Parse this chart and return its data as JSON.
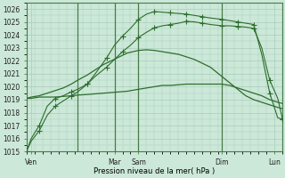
{
  "xlabel": "Pression niveau de la mer( hPa )",
  "ylim": [
    1015,
    1026.5
  ],
  "yticks": [
    1015,
    1016,
    1017,
    1018,
    1019,
    1020,
    1021,
    1022,
    1023,
    1024,
    1025,
    1026
  ],
  "bg_color": "#cce8d8",
  "grid_color": "#aaccbb",
  "line_color": "#2d6e2d",
  "xlim": [
    0,
    16
  ],
  "xtick_positions": [
    0.3,
    5.5,
    7.0,
    12.2,
    15.5
  ],
  "xtick_labels": [
    "Ven",
    "Mar",
    "Sam",
    "Dim",
    "Lun"
  ],
  "vline_positions": [
    3.2,
    5.5,
    7.0,
    12.2
  ],
  "line1_x": [
    0,
    0.3,
    0.8,
    1.3,
    1.8,
    2.3,
    2.8,
    3.2,
    3.8,
    4.3,
    4.8,
    5.3,
    5.8,
    6.3,
    7.0,
    7.5,
    8.0,
    8.5,
    9.0,
    9.5,
    10.0,
    10.5,
    11.0,
    11.5,
    12.2,
    12.7,
    13.2,
    13.7,
    14.2,
    14.7,
    15.2,
    15.7,
    16
  ],
  "line1_y": [
    1019.1,
    1019.1,
    1019.2,
    1019.2,
    1019.2,
    1019.25,
    1019.3,
    1019.35,
    1019.4,
    1019.45,
    1019.5,
    1019.55,
    1019.6,
    1019.65,
    1019.8,
    1019.9,
    1020.0,
    1020.1,
    1020.1,
    1020.15,
    1020.2,
    1020.2,
    1020.2,
    1020.2,
    1020.2,
    1020.1,
    1019.9,
    1019.7,
    1019.5,
    1019.3,
    1019.0,
    1018.8,
    1018.7
  ],
  "line2_x": [
    0,
    0.3,
    0.8,
    1.3,
    1.8,
    2.3,
    2.8,
    3.2,
    3.8,
    4.3,
    4.8,
    5.3,
    5.8,
    6.3,
    7.0,
    7.5,
    8.0,
    8.5,
    9.0,
    9.5,
    10.0,
    10.5,
    11.0,
    11.5,
    12.2,
    12.7,
    13.2,
    13.7,
    14.2,
    14.7,
    15.2,
    15.7,
    16
  ],
  "line2_y": [
    1019.1,
    1019.2,
    1019.3,
    1019.5,
    1019.7,
    1019.9,
    1020.2,
    1020.5,
    1020.9,
    1021.3,
    1021.7,
    1022.0,
    1022.3,
    1022.6,
    1022.8,
    1022.85,
    1022.8,
    1022.7,
    1022.6,
    1022.5,
    1022.3,
    1022.1,
    1021.8,
    1021.5,
    1020.8,
    1020.3,
    1019.8,
    1019.3,
    1019.0,
    1018.8,
    1018.6,
    1018.4,
    1018.3
  ],
  "line3_x": [
    0.0,
    0.3,
    0.8,
    1.3,
    1.8,
    2.3,
    2.8,
    3.2,
    3.8,
    4.3,
    5.0,
    5.5,
    6.0,
    6.5,
    7.0,
    7.5,
    8.0,
    8.5,
    9.0,
    9.5,
    10.0,
    10.5,
    11.0,
    11.5,
    12.2,
    12.7,
    13.2,
    13.7,
    14.2,
    14.7,
    15.2,
    15.7,
    16.0
  ],
  "line3_y": [
    1015.0,
    1016.0,
    1017.0,
    1018.5,
    1019.1,
    1019.3,
    1019.6,
    1019.8,
    1020.2,
    1020.8,
    1021.5,
    1022.1,
    1022.7,
    1023.2,
    1023.8,
    1024.2,
    1024.55,
    1024.7,
    1024.8,
    1024.9,
    1025.05,
    1025.0,
    1024.9,
    1024.8,
    1024.7,
    1024.7,
    1024.65,
    1024.6,
    1024.5,
    1023.0,
    1020.5,
    1019.1,
    1017.5
  ],
  "line4_x": [
    0.0,
    0.3,
    0.8,
    1.3,
    1.8,
    2.3,
    2.8,
    3.2,
    3.8,
    4.3,
    5.0,
    5.5,
    6.0,
    6.5,
    7.0,
    7.5,
    8.0,
    8.5,
    9.0,
    9.5,
    10.0,
    10.5,
    11.0,
    11.5,
    12.2,
    12.7,
    13.2,
    13.7,
    14.2,
    14.7,
    15.2,
    15.7,
    16.0
  ],
  "line4_y": [
    1015.0,
    1015.8,
    1016.6,
    1017.8,
    1018.5,
    1018.9,
    1019.3,
    1019.6,
    1020.2,
    1021.0,
    1022.2,
    1023.2,
    1023.9,
    1024.5,
    1025.2,
    1025.6,
    1025.8,
    1025.75,
    1025.7,
    1025.65,
    1025.6,
    1025.5,
    1025.4,
    1025.3,
    1025.2,
    1025.1,
    1025.0,
    1024.9,
    1024.8,
    1022.5,
    1019.5,
    1017.6,
    1017.5
  ],
  "line3_markers_x": [
    0.0,
    0.8,
    1.8,
    2.8,
    3.8,
    5.0,
    6.0,
    7.0,
    8.0,
    9.0,
    10.0,
    11.0,
    12.2,
    13.2,
    14.2,
    15.2,
    16.0
  ],
  "line3_markers_y": [
    1015.0,
    1017.0,
    1019.1,
    1019.6,
    1020.2,
    1021.5,
    1022.7,
    1023.8,
    1024.55,
    1024.8,
    1025.05,
    1024.9,
    1024.7,
    1024.65,
    1024.5,
    1020.5,
    1017.5
  ],
  "line4_markers_x": [
    0.0,
    0.8,
    1.8,
    2.8,
    3.8,
    5.0,
    6.0,
    7.0,
    8.0,
    9.0,
    10.0,
    11.0,
    12.2,
    13.2,
    14.2,
    15.2,
    16.0
  ],
  "line4_markers_y": [
    1015.0,
    1016.6,
    1018.5,
    1019.3,
    1020.2,
    1022.2,
    1023.9,
    1025.2,
    1025.8,
    1025.7,
    1025.6,
    1025.4,
    1025.2,
    1025.0,
    1024.8,
    1019.5,
    1017.5
  ]
}
